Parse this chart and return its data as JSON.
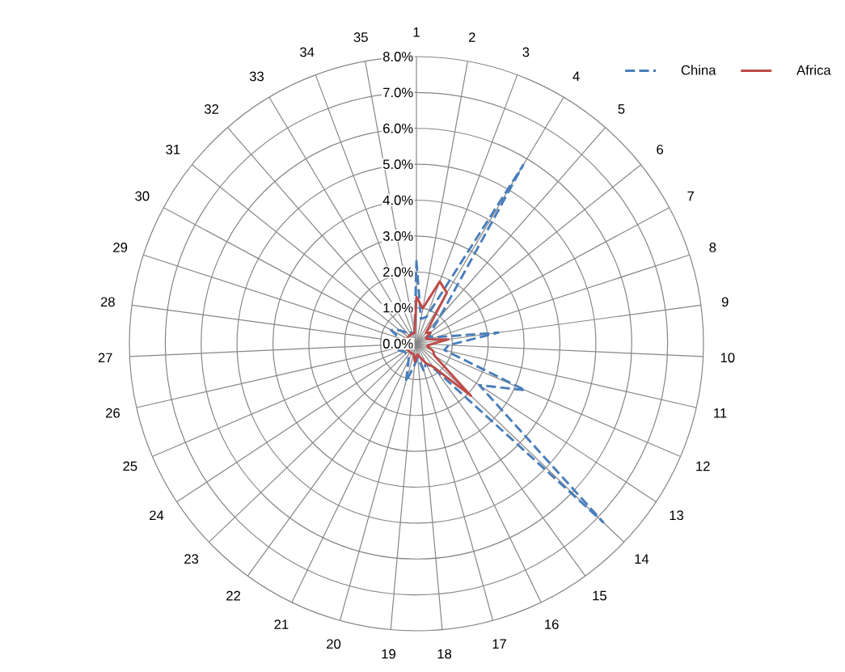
{
  "chart_data": {
    "type": "radar",
    "categories": [
      "1",
      "2",
      "3",
      "4",
      "5",
      "6",
      "7",
      "8",
      "9",
      "10",
      "11",
      "12",
      "13",
      "14",
      "15",
      "16",
      "17",
      "18",
      "19",
      "20",
      "21",
      "22",
      "23",
      "24",
      "25",
      "26",
      "27",
      "28",
      "29",
      "30",
      "31",
      "32",
      "33",
      "34",
      "35"
    ],
    "ylim": [
      0,
      8
    ],
    "yticks": [
      {
        "value": 0,
        "label": "0.0%"
      },
      {
        "value": 1,
        "label": "1.0%"
      },
      {
        "value": 2,
        "label": "2.0%"
      },
      {
        "value": 3,
        "label": "3.0%"
      },
      {
        "value": 4,
        "label": "4.0%"
      },
      {
        "value": 5,
        "label": "5.0%"
      },
      {
        "value": 6,
        "label": "6.0%"
      },
      {
        "value": 7,
        "label": "7.0%"
      },
      {
        "value": 8,
        "label": "8.0%"
      }
    ],
    "grid": true,
    "legend": "top right",
    "series": [
      {
        "name": "China",
        "color": "#4a7ebb",
        "line_style": "dashed",
        "values": [
          2.3,
          0.7,
          0.8,
          5.8,
          1.0,
          0.5,
          0.4,
          0.6,
          2.3,
          0.9,
          0.8,
          3.3,
          2.1,
          7.2,
          0.9,
          0.6,
          0.8,
          0.4,
          0.6,
          1.1,
          0.5,
          0.4,
          0.4,
          0.4,
          0.5,
          0.6,
          0.6,
          0.5,
          0.5,
          0.8,
          0.6,
          0.4,
          0.4,
          0.3,
          0.3
        ]
      },
      {
        "name": "Africa",
        "color": "#be4b48",
        "line_style": "solid",
        "values": [
          1.3,
          1.0,
          1.85,
          1.65,
          0.4,
          0.5,
          0.3,
          0.4,
          0.9,
          0.4,
          0.3,
          0.5,
          0.6,
          2.1,
          0.8,
          0.6,
          0.4,
          0.3,
          0.5,
          0.3,
          0.3,
          0.3,
          0.3,
          0.3,
          0.3,
          0.3,
          0.4,
          0.5,
          0.4,
          0.3,
          0.3,
          0.3,
          0.3,
          0.3,
          0.3
        ]
      }
    ]
  }
}
